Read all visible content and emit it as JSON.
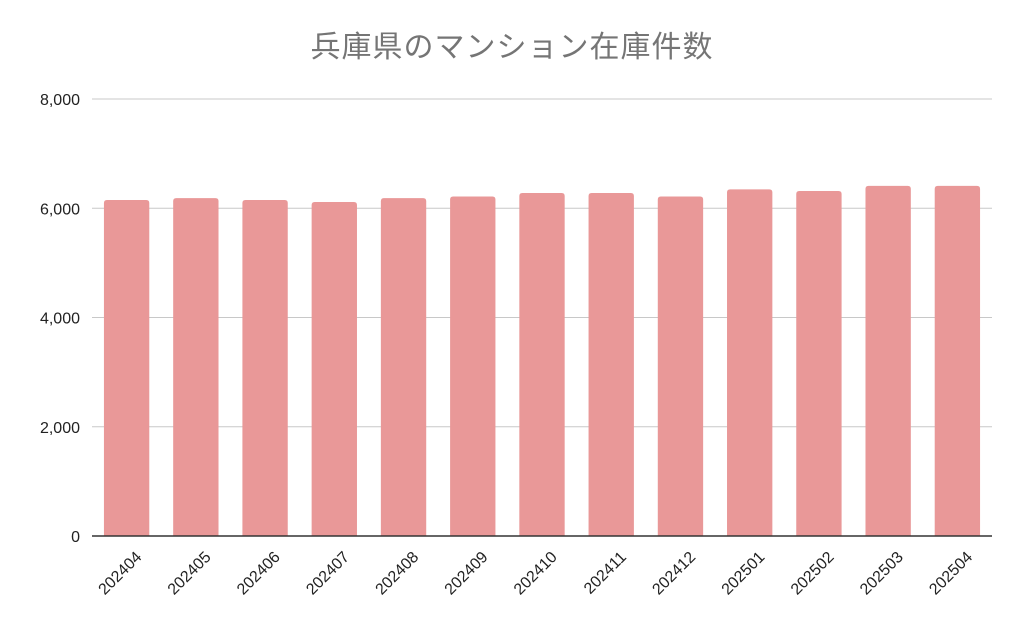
{
  "chart_data": {
    "type": "bar",
    "title": "兵庫県のマンション在庫件数",
    "xlabel": "",
    "ylabel": "",
    "categories": [
      "202404",
      "202405",
      "202406",
      "202407",
      "202408",
      "202409",
      "202410",
      "202411",
      "202412",
      "202501",
      "202502",
      "202503",
      "202504"
    ],
    "series": [
      {
        "values": [
          6150,
          6185,
          6150,
          6115,
          6185,
          6215,
          6280,
          6280,
          6215,
          6345,
          6315,
          6410,
          6410
        ]
      }
    ],
    "ylim": [
      0,
      8000
    ],
    "yticks": [
      0,
      2000,
      4000,
      6000,
      8000
    ],
    "ytick_labels": [
      "0",
      "2,000",
      "4,000",
      "6,000",
      "8,000"
    ],
    "grid": true,
    "legend": "none",
    "colors": {
      "bar": "#e99898",
      "grid": "#c8c8c8",
      "axis": "#333333"
    }
  }
}
